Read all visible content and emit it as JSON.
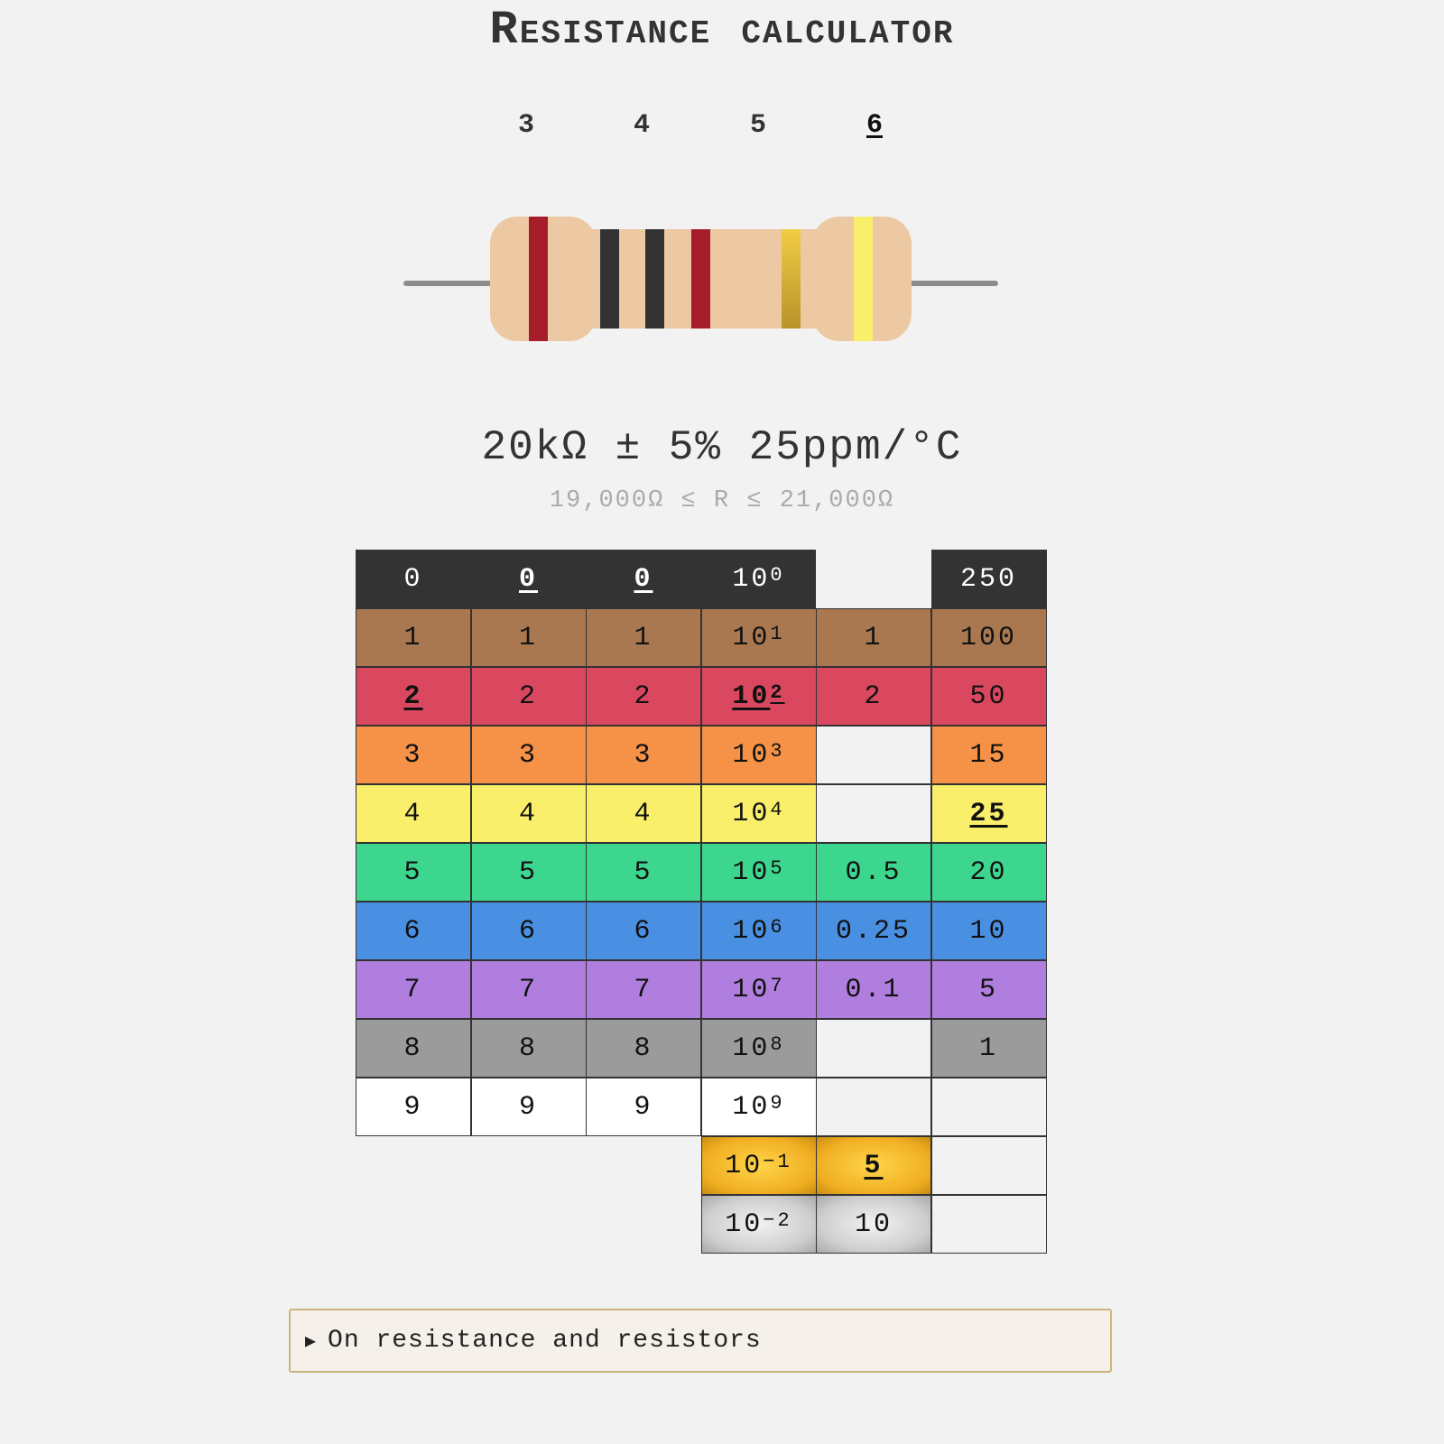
{
  "title": "Resistance calculator",
  "band_count": {
    "options": [
      "3",
      "4",
      "5",
      "6"
    ],
    "selected": "6"
  },
  "resistor": {
    "body_color": "#ecc9a2",
    "bands": [
      {
        "color_name": "red",
        "color": "#a61c2a"
      },
      {
        "color_name": "black",
        "color": "#333333"
      },
      {
        "color_name": "black",
        "color": "#333333"
      },
      {
        "color_name": "red",
        "color": "#a61c2a"
      },
      {
        "color_name": "gold",
        "color": "#d4aa2f"
      },
      {
        "color_name": "yellow",
        "color": "#f9ef6a"
      }
    ]
  },
  "result": {
    "value": "20kΩ ± 5% 25ppm/°C",
    "range": "19,000Ω ≤ R ≤ 21,000Ω"
  },
  "table": {
    "rows": [
      {
        "color_name": "black",
        "bg": "#333333",
        "fg": "#ffffff",
        "cells": [
          "0",
          "0",
          "0",
          {
            "base": "10",
            "exp": "0"
          },
          null,
          "250"
        ]
      },
      {
        "color_name": "brown",
        "bg": "#a97850",
        "fg": "#111111",
        "cells": [
          "1",
          "1",
          "1",
          {
            "base": "10",
            "exp": "1"
          },
          "1",
          "100"
        ]
      },
      {
        "color_name": "red",
        "bg": "#d9485f",
        "fg": "#111111",
        "cells": [
          "2",
          "2",
          "2",
          {
            "base": "10",
            "exp": "2"
          },
          "2",
          "50"
        ]
      },
      {
        "color_name": "orange",
        "bg": "#f59247",
        "fg": "#111111",
        "cells": [
          "3",
          "3",
          "3",
          {
            "base": "10",
            "exp": "3"
          },
          null,
          "15"
        ]
      },
      {
        "color_name": "yellow",
        "bg": "#f9ef6a",
        "fg": "#111111",
        "cells": [
          "4",
          "4",
          "4",
          {
            "base": "10",
            "exp": "4"
          },
          null,
          "25"
        ]
      },
      {
        "color_name": "green",
        "bg": "#3dd68f",
        "fg": "#111111",
        "cells": [
          "5",
          "5",
          "5",
          {
            "base": "10",
            "exp": "5"
          },
          "0.5",
          "20"
        ]
      },
      {
        "color_name": "blue",
        "bg": "#4a90e2",
        "fg": "#111111",
        "cells": [
          "6",
          "6",
          "6",
          {
            "base": "10",
            "exp": "6"
          },
          "0.25",
          "10"
        ]
      },
      {
        "color_name": "violet",
        "bg": "#b07ede",
        "fg": "#111111",
        "cells": [
          "7",
          "7",
          "7",
          {
            "base": "10",
            "exp": "7"
          },
          "0.1",
          "5"
        ]
      },
      {
        "color_name": "grey",
        "bg": "#9b9b9b",
        "fg": "#111111",
        "cells": [
          "8",
          "8",
          "8",
          {
            "base": "10",
            "exp": "8"
          },
          null,
          "1"
        ]
      },
      {
        "color_name": "white",
        "bg": "#ffffff",
        "fg": "#111111",
        "cells": [
          "9",
          "9",
          "9",
          {
            "base": "10",
            "exp": "9"
          },
          null,
          null
        ]
      },
      {
        "color_name": "gold",
        "bg": "#f5b92a",
        "fg": "#111111",
        "cells": [
          "-",
          "-",
          "-",
          {
            "base": "10",
            "exp": "−1"
          },
          "5",
          null
        ]
      },
      {
        "color_name": "silver",
        "bg": "#c8c8c8",
        "fg": "#111111",
        "cells": [
          "-",
          "-",
          "-",
          {
            "base": "10",
            "exp": "−2"
          },
          "10",
          null
        ]
      }
    ],
    "selected": {
      "band1": "2",
      "band2": "0",
      "band3": "0",
      "multiplier": "10^2",
      "tolerance": "5",
      "tempco": "25"
    }
  },
  "details": {
    "label": "On resistance and resistors",
    "icon": "triangle-right-icon"
  }
}
